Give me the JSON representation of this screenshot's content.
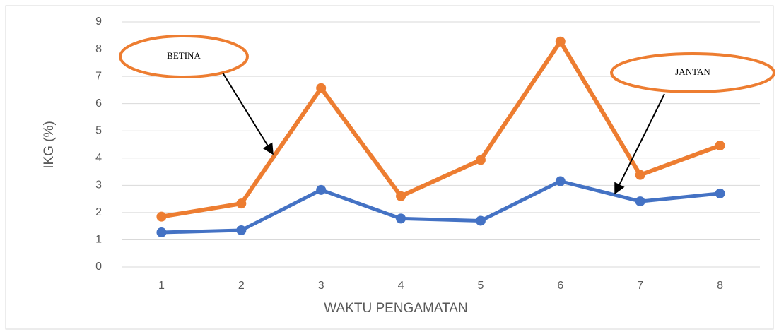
{
  "chart_data": {
    "type": "line",
    "xlabel": "WAKTU PENGAMATAN",
    "ylabel": "IKG (%)",
    "categories": [
      "1",
      "2",
      "3",
      "4",
      "5",
      "6",
      "7",
      "8"
    ],
    "series": [
      {
        "name": "BETINA",
        "color": "#ed7d31",
        "values": [
          1.85,
          2.33,
          6.57,
          2.6,
          3.93,
          8.28,
          3.38,
          4.46
        ]
      },
      {
        "name": "JANTAN",
        "color": "#4472c4",
        "values": [
          1.27,
          1.35,
          2.83,
          1.78,
          1.7,
          3.15,
          2.41,
          2.7
        ]
      }
    ],
    "ylim": [
      0,
      9
    ],
    "yticks": [
      0,
      1,
      2,
      3,
      4,
      5,
      6,
      7,
      8,
      9
    ],
    "grid": true
  }
}
